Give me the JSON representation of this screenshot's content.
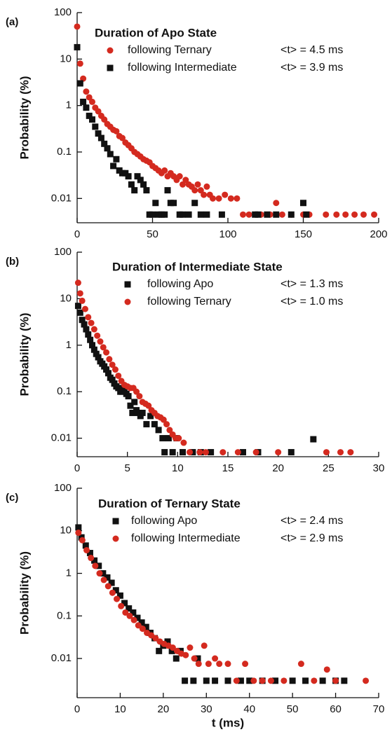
{
  "chart_data": [
    {
      "type": "scatter",
      "label": "(a)",
      "title": "Duration of Apo State",
      "y_label": "Probability (%)",
      "log_y": true,
      "xlim": [
        0,
        200
      ],
      "xticks": [
        0,
        50,
        100,
        150,
        200
      ],
      "ylim": [
        0.003,
        100
      ],
      "yticks": [
        100,
        10,
        1,
        0.1,
        0.01
      ],
      "series": [
        {
          "name": "following Ternary",
          "stat": "<t> = 4.5 ms",
          "color": "#d42a1f",
          "marker": "circle",
          "x": [
            0,
            2,
            4,
            6,
            8,
            10,
            12,
            14,
            16,
            18,
            20,
            22,
            24,
            26,
            28,
            30,
            32,
            34,
            36,
            38,
            40,
            42,
            44,
            46,
            48,
            50,
            52,
            54,
            56,
            58,
            60,
            62,
            64,
            66,
            68,
            70,
            72,
            74,
            76,
            78,
            80,
            82,
            84,
            86,
            88,
            90,
            94,
            98,
            102,
            106,
            110,
            114,
            122,
            128,
            132,
            136,
            142,
            150,
            154,
            165,
            172,
            178,
            184,
            190,
            197
          ],
          "values": [
            50,
            8,
            3.8,
            2,
            1.5,
            1.2,
            0.9,
            0.75,
            0.6,
            0.5,
            0.4,
            0.35,
            0.3,
            0.28,
            0.22,
            0.2,
            0.16,
            0.14,
            0.12,
            0.1,
            0.09,
            0.08,
            0.07,
            0.065,
            0.06,
            0.05,
            0.045,
            0.04,
            0.035,
            0.04,
            0.03,
            0.035,
            0.03,
            0.025,
            0.03,
            0.02,
            0.025,
            0.02,
            0.018,
            0.015,
            0.02,
            0.015,
            0.012,
            0.018,
            0.012,
            0.01,
            0.01,
            0.012,
            0.01,
            0.01,
            0.0045,
            0.0045,
            0.0045,
            0.0045,
            0.008,
            0.0045,
            0.0045,
            0.0045,
            0.0045,
            0.0045,
            0.0045,
            0.0045,
            0.0045,
            0.0045,
            0.0045
          ]
        },
        {
          "name": "following Intermediate",
          "stat": "<t> = 3.9 ms",
          "color": "#111111",
          "marker": "square",
          "x": [
            0,
            2,
            4,
            6,
            8,
            10,
            12,
            14,
            16,
            18,
            20,
            22,
            24,
            26,
            28,
            30,
            32,
            34,
            36,
            38,
            40,
            42,
            44,
            46,
            48,
            50,
            52,
            54,
            56,
            58,
            60,
            62,
            64,
            68,
            70,
            74,
            78,
            82,
            86,
            96,
            118,
            120,
            126,
            132,
            142,
            150,
            152
          ],
          "values": [
            18,
            3,
            1.2,
            0.9,
            0.6,
            0.5,
            0.35,
            0.25,
            0.2,
            0.15,
            0.12,
            0.09,
            0.05,
            0.07,
            0.04,
            0.035,
            0.035,
            0.03,
            0.02,
            0.015,
            0.03,
            0.025,
            0.02,
            0.015,
            0.0045,
            0.0045,
            0.008,
            0.0045,
            0.0045,
            0.0045,
            0.015,
            0.008,
            0.008,
            0.0045,
            0.0045,
            0.0045,
            0.008,
            0.0045,
            0.0045,
            0.0045,
            0.0045,
            0.0045,
            0.0045,
            0.0045,
            0.0045,
            0.008,
            0.0045
          ]
        }
      ]
    },
    {
      "type": "scatter",
      "label": "(b)",
      "title": "Duration of Intermediate State",
      "y_label": "Probability (%)",
      "log_y": true,
      "xlim": [
        0,
        30
      ],
      "xticks": [
        0,
        5,
        10,
        15,
        20,
        25,
        30
      ],
      "ylim": [
        0.004,
        100
      ],
      "yticks": [
        100,
        10,
        1,
        0.1,
        0.01
      ],
      "series": [
        {
          "name": "following Apo",
          "stat": "<t> = 1.3 ms",
          "color": "#111111",
          "marker": "square",
          "x": [
            0.1,
            0.3,
            0.5,
            0.7,
            0.9,
            1.1,
            1.3,
            1.5,
            1.7,
            1.9,
            2.1,
            2.3,
            2.5,
            2.7,
            2.9,
            3.1,
            3.3,
            3.5,
            3.7,
            3.9,
            4.1,
            4.3,
            4.5,
            4.7,
            4.9,
            5.1,
            5.3,
            5.5,
            5.7,
            5.9,
            6.1,
            6.3,
            6.5,
            6.9,
            7.3,
            7.7,
            8.1,
            8.5,
            8.7,
            9.1,
            9.5,
            9.9,
            10.5,
            11.5,
            12.3,
            13.3,
            16.5,
            18,
            21.3,
            23.5
          ],
          "values": [
            7,
            5,
            3.5,
            2.8,
            2.2,
            1.7,
            1.3,
            1,
            0.8,
            0.65,
            0.55,
            0.45,
            0.4,
            0.35,
            0.3,
            0.25,
            0.2,
            0.18,
            0.15,
            0.13,
            0.12,
            0.1,
            0.1,
            0.12,
            0.09,
            0.08,
            0.05,
            0.035,
            0.06,
            0.04,
            0.035,
            0.03,
            0.035,
            0.02,
            0.03,
            0.02,
            0.015,
            0.01,
            0.005,
            0.01,
            0.005,
            0.01,
            0.005,
            0.005,
            0.005,
            0.005,
            0.005,
            0.005,
            0.005,
            0.0095
          ]
        },
        {
          "name": "following Ternary",
          "stat": "<t> = 1.0 ms",
          "color": "#d42a1f",
          "marker": "circle",
          "x": [
            0.1,
            0.3,
            0.5,
            0.8,
            1.1,
            1.4,
            1.7,
            2,
            2.3,
            2.6,
            2.9,
            3.2,
            3.5,
            3.8,
            4.1,
            4.4,
            4.7,
            5,
            5.3,
            5.6,
            5.9,
            6.2,
            6.5,
            6.8,
            7.1,
            7.4,
            7.7,
            8,
            8.3,
            8.6,
            8.9,
            9.2,
            9.5,
            9.8,
            10.1,
            10.6,
            11.2,
            12.2,
            12.8,
            14.5,
            16,
            17.8,
            20,
            24.8,
            26.2,
            27.2
          ],
          "values": [
            22,
            13,
            9,
            6,
            4,
            3,
            2.2,
            1.6,
            1.2,
            0.9,
            0.7,
            0.5,
            0.38,
            0.3,
            0.22,
            0.17,
            0.14,
            0.13,
            0.12,
            0.12,
            0.1,
            0.08,
            0.06,
            0.055,
            0.05,
            0.04,
            0.035,
            0.03,
            0.028,
            0.025,
            0.02,
            0.015,
            0.012,
            0.01,
            0.01,
            0.008,
            0.005,
            0.005,
            0.005,
            0.005,
            0.005,
            0.005,
            0.005,
            0.005,
            0.005,
            0.005
          ]
        }
      ]
    },
    {
      "type": "scatter",
      "label": "(c)",
      "title": "Duration of Ternary State",
      "y_label": "Probability (%)",
      "x_label": "t (ms)",
      "log_y": true,
      "xlim": [
        0,
        70
      ],
      "xticks": [
        0,
        10,
        20,
        30,
        40,
        50,
        60,
        70
      ],
      "ylim": [
        0.0012,
        100
      ],
      "yticks": [
        100,
        10,
        1,
        0.1,
        0.01
      ],
      "series": [
        {
          "name": "following Apo",
          "stat": "<t> = 2.4 ms",
          "color": "#111111",
          "marker": "square",
          "x": [
            0.3,
            1,
            2,
            3,
            4,
            5,
            6,
            7,
            8,
            9,
            10,
            11,
            12,
            13,
            14,
            15,
            16,
            17,
            18,
            19,
            20,
            21,
            22,
            23,
            24,
            25,
            27,
            28,
            30,
            32,
            35,
            38,
            40,
            43,
            46,
            50,
            53,
            57,
            60,
            62
          ],
          "values": [
            12,
            7,
            4.5,
            3,
            2,
            1.5,
            1,
            0.8,
            0.6,
            0.4,
            0.3,
            0.2,
            0.15,
            0.12,
            0.09,
            0.07,
            0.055,
            0.04,
            0.03,
            0.015,
            0.02,
            0.025,
            0.015,
            0.01,
            0.015,
            0.003,
            0.003,
            0.01,
            0.003,
            0.003,
            0.003,
            0.003,
            0.003,
            0.003,
            0.003,
            0.003,
            0.003,
            0.003,
            0.003,
            0.003
          ]
        },
        {
          "name": "following Intermediate",
          "stat": "<t> = 2.9 ms",
          "color": "#d42a1f",
          "marker": "circle",
          "x": [
            0.3,
            1.2,
            2.2,
            3.2,
            4.2,
            5.2,
            6.2,
            7.2,
            8.2,
            9.2,
            10.2,
            11.2,
            12.2,
            13.2,
            14.2,
            15.2,
            16.2,
            17.2,
            18.2,
            19.2,
            20.2,
            21.2,
            22.2,
            23.2,
            24.2,
            25.2,
            26.2,
            27.2,
            28.2,
            29.5,
            30.5,
            32,
            33,
            35,
            37,
            39,
            41,
            43,
            45,
            48,
            52,
            55,
            58,
            60,
            67
          ],
          "values": [
            9,
            6,
            3.5,
            2.3,
            1.5,
            1,
            0.7,
            0.5,
            0.35,
            0.25,
            0.17,
            0.12,
            0.1,
            0.08,
            0.06,
            0.05,
            0.04,
            0.035,
            0.03,
            0.025,
            0.022,
            0.02,
            0.018,
            0.015,
            0.013,
            0.012,
            0.018,
            0.01,
            0.0075,
            0.02,
            0.0075,
            0.01,
            0.0075,
            0.0075,
            0.003,
            0.0075,
            0.003,
            0.003,
            0.003,
            0.003,
            0.0075,
            0.003,
            0.0055,
            0.003,
            0.003
          ]
        }
      ]
    }
  ]
}
